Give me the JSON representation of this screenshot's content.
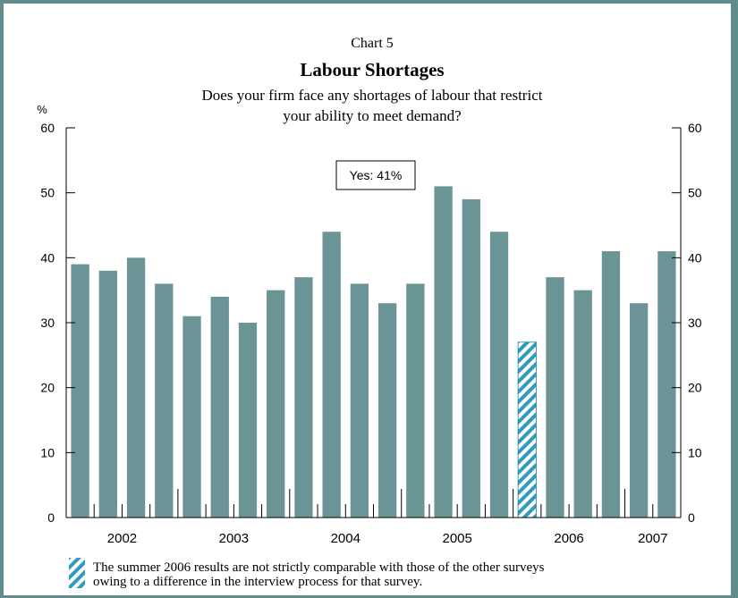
{
  "chart_data": {
    "type": "bar",
    "chart_label": "Chart 5",
    "title": "Labour Shortages",
    "subtitle_lines": [
      "Does your firm face any shortages of labour that restrict",
      "your ability to meet demand?"
    ],
    "y_unit": "%",
    "ylim": [
      0,
      60
    ],
    "yticks": [
      0,
      10,
      20,
      30,
      40,
      50,
      60
    ],
    "year_labels": [
      "2002",
      "2003",
      "2004",
      "2005",
      "2006",
      "2007"
    ],
    "values": [
      39,
      38,
      40,
      36,
      31,
      34,
      30,
      35,
      37,
      44,
      36,
      33,
      36,
      51,
      49,
      44,
      27,
      37,
      35,
      41,
      33,
      41
    ],
    "hatched_index": 16,
    "bar_color": "#6a9496",
    "hatch_color": "#2e9bbf",
    "annotation": "Yes: 41%",
    "footnote_lines": [
      "The summer 2006 results are not strictly comparable with those of the other surveys",
      "owing to a difference in the interview process for that survey."
    ],
    "grid": false
  }
}
